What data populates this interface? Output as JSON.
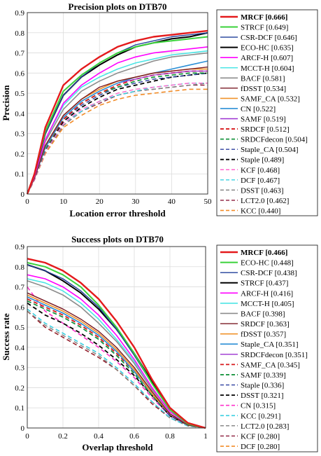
{
  "chart_data": [
    {
      "type": "line",
      "title": "Precision plots on DTB70",
      "xlabel": "Location error threshold",
      "ylabel": "Precision",
      "xlim": [
        0,
        50
      ],
      "ylim": [
        0,
        0.9
      ],
      "xticks": [
        "0",
        "10",
        "20",
        "30",
        "40",
        "50"
      ],
      "yticks": [
        "0",
        "0.1",
        "0.2",
        "0.3",
        "0.4",
        "0.5",
        "0.6",
        "0.7",
        "0.8",
        "0.9"
      ],
      "grid": true,
      "legend_position": "outside-right",
      "x": [
        0,
        2,
        5,
        10,
        15,
        20,
        25,
        30,
        35,
        40,
        45,
        50
      ],
      "series": [
        {
          "name": "MRCF [0.666]",
          "color": "#e41a1c",
          "dash": "solid",
          "width": 2.4,
          "bold": true,
          "values": [
            0,
            0.1,
            0.33,
            0.54,
            0.62,
            0.68,
            0.73,
            0.76,
            0.78,
            0.79,
            0.8,
            0.81
          ]
        },
        {
          "name": "STRCF [0.649]",
          "color": "#3ad23a",
          "dash": "solid",
          "width": 2,
          "values": [
            0,
            0.1,
            0.31,
            0.51,
            0.59,
            0.65,
            0.7,
            0.73,
            0.75,
            0.76,
            0.77,
            0.78
          ]
        },
        {
          "name": "CSR-DCF [0.646]",
          "color": "#1f3f99",
          "dash": "solid",
          "width": 1.4,
          "values": [
            0,
            0.1,
            0.3,
            0.49,
            0.58,
            0.65,
            0.7,
            0.74,
            0.76,
            0.78,
            0.79,
            0.8
          ]
        },
        {
          "name": "ECO-HC [0.635]",
          "color": "#000000",
          "dash": "solid",
          "width": 2,
          "values": [
            0,
            0.1,
            0.3,
            0.49,
            0.58,
            0.64,
            0.69,
            0.73,
            0.75,
            0.77,
            0.78,
            0.8
          ]
        },
        {
          "name": "ARCF-H [0.607]",
          "color": "#ff00ff",
          "dash": "solid",
          "width": 1.6,
          "values": [
            0,
            0.09,
            0.27,
            0.45,
            0.54,
            0.6,
            0.65,
            0.68,
            0.7,
            0.71,
            0.72,
            0.73
          ]
        },
        {
          "name": "MCCT-H [0.604]",
          "color": "#4de5e5",
          "dash": "solid",
          "width": 1.6,
          "values": [
            0,
            0.09,
            0.27,
            0.44,
            0.53,
            0.58,
            0.62,
            0.65,
            0.67,
            0.69,
            0.7,
            0.71
          ]
        },
        {
          "name": "BACF [0.581]",
          "color": "#8c8c8c",
          "dash": "solid",
          "width": 1.6,
          "values": [
            0,
            0.09,
            0.26,
            0.42,
            0.51,
            0.56,
            0.6,
            0.63,
            0.66,
            0.68,
            0.69,
            0.7
          ]
        },
        {
          "name": "fDSST [0.534]",
          "color": "#7a1a24",
          "dash": "solid",
          "width": 1.4,
          "values": [
            0,
            0.08,
            0.24,
            0.39,
            0.47,
            0.53,
            0.56,
            0.58,
            0.6,
            0.61,
            0.62,
            0.63
          ]
        },
        {
          "name": "SAMF_CA [0.532]",
          "color": "#f0932b",
          "dash": "solid",
          "width": 1.6,
          "values": [
            0,
            0.08,
            0.24,
            0.39,
            0.47,
            0.52,
            0.56,
            0.58,
            0.6,
            0.61,
            0.62,
            0.62
          ]
        },
        {
          "name": "CN [0.522]",
          "color": "#2b8fd6",
          "dash": "solid",
          "width": 1.6,
          "values": [
            0,
            0.08,
            0.23,
            0.38,
            0.46,
            0.51,
            0.55,
            0.58,
            0.6,
            0.62,
            0.64,
            0.66
          ]
        },
        {
          "name": "SAMF [0.519]",
          "color": "#9b30d1",
          "dash": "solid",
          "width": 1.2,
          "values": [
            0,
            0.08,
            0.23,
            0.38,
            0.46,
            0.51,
            0.55,
            0.57,
            0.59,
            0.6,
            0.61,
            0.61
          ]
        },
        {
          "name": "SRDCF [0.512]",
          "color": "#d7191c",
          "dash": "dashed",
          "width": 1.8,
          "values": [
            0,
            0.08,
            0.23,
            0.37,
            0.45,
            0.5,
            0.54,
            0.57,
            0.59,
            0.6,
            0.61,
            0.61
          ]
        },
        {
          "name": "SRDCFdecon [0.504]",
          "color": "#1a9641",
          "dash": "dashed",
          "width": 1.8,
          "values": [
            0,
            0.08,
            0.22,
            0.37,
            0.45,
            0.5,
            0.53,
            0.56,
            0.58,
            0.59,
            0.6,
            0.6
          ]
        },
        {
          "name": "Staple_CA [0.504]",
          "color": "#2c3e9e",
          "dash": "dashed",
          "width": 1.4,
          "values": [
            0,
            0.08,
            0.22,
            0.37,
            0.44,
            0.49,
            0.53,
            0.55,
            0.57,
            0.58,
            0.59,
            0.6
          ]
        },
        {
          "name": "Staple [0.489]",
          "color": "#000000",
          "dash": "dashed",
          "width": 1.8,
          "values": [
            0,
            0.08,
            0.22,
            0.36,
            0.43,
            0.48,
            0.52,
            0.54,
            0.56,
            0.58,
            0.59,
            0.6
          ]
        },
        {
          "name": "KCF [0.468]",
          "color": "#ff66cc",
          "dash": "dashed",
          "width": 1.4,
          "values": [
            0,
            0.07,
            0.21,
            0.35,
            0.42,
            0.46,
            0.5,
            0.52,
            0.53,
            0.54,
            0.55,
            0.55
          ]
        },
        {
          "name": "DCF [0.467]",
          "color": "#38cfe0",
          "dash": "dashed",
          "width": 1.4,
          "values": [
            0,
            0.07,
            0.21,
            0.35,
            0.41,
            0.46,
            0.49,
            0.51,
            0.53,
            0.54,
            0.55,
            0.55
          ]
        },
        {
          "name": "DSST [0.463]",
          "color": "#7f7f7f",
          "dash": "dashed",
          "width": 1.4,
          "values": [
            0,
            0.07,
            0.21,
            0.34,
            0.41,
            0.46,
            0.49,
            0.51,
            0.52,
            0.53,
            0.54,
            0.55
          ]
        },
        {
          "name": "LCT2.0 [0.462]",
          "color": "#8b1a3a",
          "dash": "dashed",
          "width": 1.4,
          "values": [
            0,
            0.07,
            0.21,
            0.34,
            0.41,
            0.45,
            0.49,
            0.51,
            0.52,
            0.53,
            0.54,
            0.54
          ]
        },
        {
          "name": "KCC [0.440]",
          "color": "#f28c28",
          "dash": "dashed",
          "width": 1.6,
          "values": [
            0,
            0.07,
            0.2,
            0.33,
            0.39,
            0.44,
            0.47,
            0.49,
            0.5,
            0.51,
            0.52,
            0.52
          ]
        }
      ]
    },
    {
      "type": "line",
      "title": "Success plots on DTB70",
      "xlabel": "Overlap threshold",
      "ylabel": "Success rate",
      "xlim": [
        0,
        1
      ],
      "ylim": [
        0,
        0.9
      ],
      "xticks": [
        "0",
        "0.2",
        "0.4",
        "0.6",
        "0.8",
        "1"
      ],
      "yticks": [
        "0",
        "0.1",
        "0.2",
        "0.3",
        "0.4",
        "0.5",
        "0.6",
        "0.7",
        "0.8",
        "0.9"
      ],
      "grid": true,
      "legend_position": "outside-right",
      "x": [
        0,
        0.1,
        0.2,
        0.3,
        0.4,
        0.5,
        0.6,
        0.7,
        0.8,
        0.9,
        1
      ],
      "series": [
        {
          "name": "MRCF [0.466]",
          "color": "#e41a1c",
          "dash": "solid",
          "width": 2.4,
          "bold": true,
          "values": [
            0.84,
            0.82,
            0.78,
            0.72,
            0.64,
            0.53,
            0.4,
            0.24,
            0.1,
            0.025,
            0
          ]
        },
        {
          "name": "ECO-HC [0.448]",
          "color": "#3ad23a",
          "dash": "solid",
          "width": 2,
          "values": [
            0.82,
            0.8,
            0.76,
            0.7,
            0.61,
            0.5,
            0.37,
            0.22,
            0.09,
            0.02,
            0
          ]
        },
        {
          "name": "CSR-DCF [0.438]",
          "color": "#1f3f99",
          "dash": "solid",
          "width": 1.4,
          "values": [
            0.81,
            0.78,
            0.74,
            0.68,
            0.6,
            0.49,
            0.36,
            0.22,
            0.09,
            0.02,
            0
          ]
        },
        {
          "name": "STRCF [0.437]",
          "color": "#000000",
          "dash": "solid",
          "width": 2,
          "values": [
            0.81,
            0.78,
            0.73,
            0.67,
            0.59,
            0.49,
            0.37,
            0.23,
            0.1,
            0.025,
            0
          ]
        },
        {
          "name": "ARCF-H [0.416]",
          "color": "#ff00ff",
          "dash": "solid",
          "width": 1.6,
          "values": [
            0.76,
            0.74,
            0.7,
            0.64,
            0.56,
            0.46,
            0.34,
            0.2,
            0.08,
            0.02,
            0
          ]
        },
        {
          "name": "MCCT-H [0.405]",
          "color": "#4de5e5",
          "dash": "solid",
          "width": 1.6,
          "values": [
            0.74,
            0.72,
            0.68,
            0.62,
            0.54,
            0.44,
            0.33,
            0.2,
            0.08,
            0.02,
            0
          ]
        },
        {
          "name": "BACF [0.398]",
          "color": "#8c8c8c",
          "dash": "solid",
          "width": 1.6,
          "values": [
            0.73,
            0.7,
            0.66,
            0.6,
            0.52,
            0.43,
            0.32,
            0.19,
            0.08,
            0.02,
            0
          ]
        },
        {
          "name": "SRDCF [0.363]",
          "color": "#7a1a24",
          "dash": "solid",
          "width": 1.4,
          "values": [
            0.67,
            0.63,
            0.59,
            0.54,
            0.48,
            0.4,
            0.3,
            0.18,
            0.07,
            0.015,
            0
          ]
        },
        {
          "name": "fDSST [0.357]",
          "color": "#f0932b",
          "dash": "solid",
          "width": 1.6,
          "values": [
            0.66,
            0.62,
            0.58,
            0.53,
            0.47,
            0.39,
            0.29,
            0.17,
            0.07,
            0.015,
            0
          ]
        },
        {
          "name": "Staple_CA [0.351]",
          "color": "#2b8fd6",
          "dash": "solid",
          "width": 1.6,
          "values": [
            0.65,
            0.61,
            0.57,
            0.52,
            0.46,
            0.38,
            0.28,
            0.17,
            0.07,
            0.015,
            0
          ]
        },
        {
          "name": "SRDCFdecon [0.351]",
          "color": "#9b30d1",
          "dash": "solid",
          "width": 1.2,
          "values": [
            0.65,
            0.61,
            0.57,
            0.52,
            0.46,
            0.38,
            0.28,
            0.17,
            0.07,
            0.015,
            0
          ]
        },
        {
          "name": "SAMF_CA [0.345]",
          "color": "#d7191c",
          "dash": "dashed",
          "width": 1.8,
          "values": [
            0.64,
            0.6,
            0.56,
            0.51,
            0.45,
            0.37,
            0.28,
            0.17,
            0.07,
            0.015,
            0
          ]
        },
        {
          "name": "SAMF [0.339]",
          "color": "#1a9641",
          "dash": "dashed",
          "width": 1.8,
          "values": [
            0.63,
            0.59,
            0.55,
            0.5,
            0.44,
            0.36,
            0.27,
            0.16,
            0.07,
            0.015,
            0
          ]
        },
        {
          "name": "Staple [0.336]",
          "color": "#2c3e9e",
          "dash": "dashed",
          "width": 1.4,
          "values": [
            0.63,
            0.59,
            0.55,
            0.5,
            0.44,
            0.36,
            0.27,
            0.16,
            0.06,
            0.015,
            0
          ]
        },
        {
          "name": "DSST [0.321]",
          "color": "#000000",
          "dash": "dashed",
          "width": 1.8,
          "values": [
            0.62,
            0.56,
            0.52,
            0.47,
            0.41,
            0.34,
            0.26,
            0.16,
            0.06,
            0.015,
            0
          ]
        },
        {
          "name": "CN [0.315]",
          "color": "#ff33cc",
          "dash": "dashed",
          "width": 1.6,
          "values": [
            0.7,
            0.58,
            0.52,
            0.46,
            0.4,
            0.33,
            0.25,
            0.15,
            0.06,
            0.015,
            0
          ]
        },
        {
          "name": "KCC [0.291]",
          "color": "#38cfe0",
          "dash": "dashed",
          "width": 1.6,
          "values": [
            0.59,
            0.52,
            0.47,
            0.42,
            0.37,
            0.3,
            0.22,
            0.13,
            0.05,
            0.01,
            0
          ]
        },
        {
          "name": "LCT2.0 [0.283]",
          "color": "#7f7f7f",
          "dash": "dashed",
          "width": 1.4,
          "values": [
            0.58,
            0.51,
            0.46,
            0.41,
            0.36,
            0.29,
            0.21,
            0.13,
            0.05,
            0.01,
            0
          ]
        },
        {
          "name": "KCF [0.280]",
          "color": "#8b1a3a",
          "dash": "dashed",
          "width": 1.4,
          "values": [
            0.58,
            0.5,
            0.45,
            0.4,
            0.35,
            0.29,
            0.21,
            0.12,
            0.05,
            0.01,
            0
          ]
        },
        {
          "name": "DCF [0.280]",
          "color": "#f28c28",
          "dash": "dashed",
          "width": 1.6,
          "values": [
            0.58,
            0.5,
            0.45,
            0.4,
            0.35,
            0.29,
            0.21,
            0.12,
            0.05,
            0.01,
            0
          ]
        }
      ]
    }
  ]
}
